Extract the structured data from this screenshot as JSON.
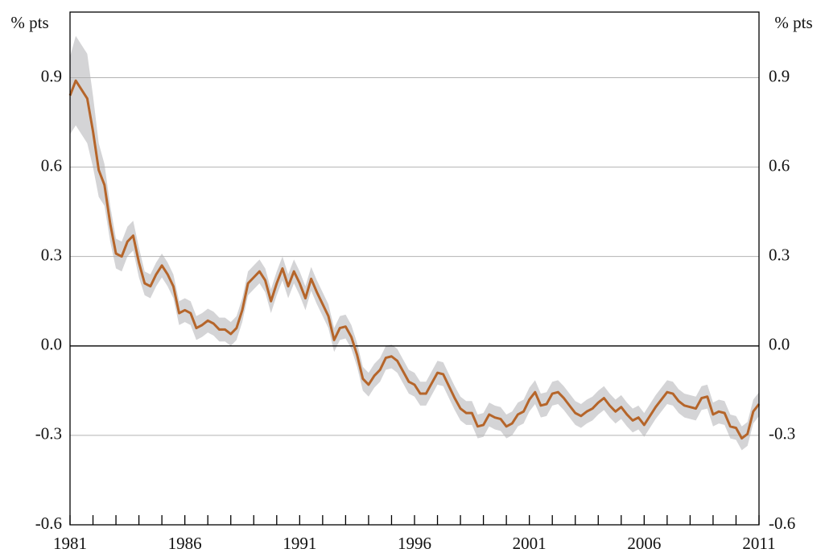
{
  "chart_data": {
    "type": "line",
    "y_label": "% pts",
    "xlim": [
      1981,
      2011
    ],
    "xticks": [
      1981,
      1986,
      1991,
      1996,
      2001,
      2006,
      2011
    ],
    "xminor_ticks": [
      1981,
      1982,
      1983,
      1984,
      1985,
      1986,
      1987,
      1988,
      1989,
      1990,
      1991,
      1992,
      1993,
      1994,
      1995,
      1996,
      1997,
      1998,
      1999,
      2000,
      2001,
      2002,
      2003,
      2004,
      2005,
      2006,
      2007,
      2008,
      2009,
      2010,
      2011
    ],
    "ylim": [
      -0.6,
      1.12
    ],
    "yticks": [
      {
        "value": -0.6,
        "label": "-0.6"
      },
      {
        "value": -0.3,
        "label": "-0.3"
      },
      {
        "value": 0,
        "label": "0.0"
      },
      {
        "value": 0.3,
        "label": "0.3"
      },
      {
        "value": 0.6,
        "label": "0.6"
      },
      {
        "value": 0.9,
        "label": "0.9"
      }
    ],
    "grid": true,
    "x": [
      1981,
      1981.25,
      1981.5,
      1981.75,
      1982,
      1982.25,
      1982.5,
      1982.75,
      1983,
      1983.25,
      1983.5,
      1983.75,
      1984,
      1984.25,
      1984.5,
      1984.75,
      1985,
      1985.25,
      1985.5,
      1985.75,
      1986,
      1986.25,
      1986.5,
      1986.75,
      1987,
      1987.25,
      1987.5,
      1987.75,
      1988,
      1988.25,
      1988.5,
      1988.75,
      1989,
      1989.25,
      1989.5,
      1989.75,
      1990,
      1990.25,
      1990.5,
      1990.75,
      1991,
      1991.25,
      1991.5,
      1991.75,
      1992,
      1992.25,
      1992.5,
      1992.75,
      1993,
      1993.25,
      1993.5,
      1993.75,
      1994,
      1994.25,
      1994.5,
      1994.75,
      1995,
      1995.25,
      1995.5,
      1995.75,
      1996,
      1996.25,
      1996.5,
      1996.75,
      1997,
      1997.25,
      1997.5,
      1997.75,
      1998,
      1998.25,
      1998.5,
      1998.75,
      1999,
      1999.25,
      1999.5,
      1999.75,
      2000,
      2000.25,
      2000.5,
      2000.75,
      2001,
      2001.25,
      2001.5,
      2001.75,
      2002,
      2002.25,
      2002.5,
      2002.75,
      2003,
      2003.25,
      2003.5,
      2003.75,
      2004,
      2004.25,
      2004.5,
      2004.75,
      2005,
      2005.25,
      2005.5,
      2005.75,
      2006,
      2006.25,
      2006.5,
      2006.75,
      2007,
      2007.25,
      2007.5,
      2007.75,
      2008,
      2008.25,
      2008.5,
      2008.75,
      2009,
      2009.25,
      2009.5,
      2009.75,
      2010,
      2010.25,
      2010.5,
      2010.75,
      2011
    ],
    "band": {
      "color": "#d4d4d6",
      "upper": [
        0.97,
        1.04,
        1.01,
        0.98,
        0.84,
        0.68,
        0.61,
        0.47,
        0.36,
        0.35,
        0.4,
        0.42,
        0.33,
        0.25,
        0.24,
        0.28,
        0.31,
        0.28,
        0.24,
        0.15,
        0.16,
        0.15,
        0.1,
        0.11,
        0.125,
        0.115,
        0.095,
        0.095,
        0.08,
        0.1,
        0.16,
        0.25,
        0.27,
        0.29,
        0.26,
        0.19,
        0.25,
        0.3,
        0.24,
        0.29,
        0.25,
        0.2,
        0.265,
        0.22,
        0.18,
        0.14,
        0.06,
        0.1,
        0.105,
        0.07,
        0.01,
        -0.07,
        -0.09,
        -0.06,
        -0.04,
        0.0,
        0.005,
        -0.01,
        -0.045,
        -0.08,
        -0.09,
        -0.12,
        -0.12,
        -0.085,
        -0.05,
        -0.055,
        -0.095,
        -0.135,
        -0.17,
        -0.185,
        -0.185,
        -0.23,
        -0.225,
        -0.19,
        -0.2,
        -0.205,
        -0.23,
        -0.22,
        -0.19,
        -0.18,
        -0.14,
        -0.115,
        -0.16,
        -0.155,
        -0.12,
        -0.115,
        -0.135,
        -0.16,
        -0.185,
        -0.195,
        -0.18,
        -0.17,
        -0.15,
        -0.135,
        -0.16,
        -0.18,
        -0.165,
        -0.19,
        -0.21,
        -0.2,
        -0.225,
        -0.195,
        -0.165,
        -0.14,
        -0.115,
        -0.12,
        -0.145,
        -0.16,
        -0.165,
        -0.17,
        -0.135,
        -0.13,
        -0.19,
        -0.18,
        -0.185,
        -0.23,
        -0.235,
        -0.27,
        -0.255,
        -0.18,
        -0.155
      ],
      "lower": [
        0.71,
        0.74,
        0.71,
        0.68,
        0.6,
        0.5,
        0.47,
        0.35,
        0.26,
        0.25,
        0.3,
        0.32,
        0.23,
        0.17,
        0.16,
        0.2,
        0.23,
        0.2,
        0.16,
        0.07,
        0.08,
        0.07,
        0.02,
        0.03,
        0.045,
        0.035,
        0.015,
        0.015,
        0.0,
        0.02,
        0.08,
        0.17,
        0.19,
        0.21,
        0.18,
        0.11,
        0.17,
        0.22,
        0.16,
        0.21,
        0.17,
        0.12,
        0.185,
        0.14,
        0.1,
        0.06,
        -0.02,
        0.02,
        0.025,
        -0.01,
        -0.07,
        -0.15,
        -0.17,
        -0.14,
        -0.12,
        -0.08,
        -0.075,
        -0.09,
        -0.125,
        -0.16,
        -0.17,
        -0.2,
        -0.2,
        -0.165,
        -0.13,
        -0.135,
        -0.175,
        -0.215,
        -0.25,
        -0.265,
        -0.265,
        -0.31,
        -0.305,
        -0.27,
        -0.28,
        -0.285,
        -0.31,
        -0.3,
        -0.27,
        -0.26,
        -0.22,
        -0.195,
        -0.24,
        -0.235,
        -0.2,
        -0.195,
        -0.215,
        -0.24,
        -0.265,
        -0.275,
        -0.26,
        -0.25,
        -0.23,
        -0.215,
        -0.24,
        -0.26,
        -0.245,
        -0.27,
        -0.29,
        -0.28,
        -0.305,
        -0.275,
        -0.245,
        -0.22,
        -0.195,
        -0.2,
        -0.225,
        -0.24,
        -0.245,
        -0.25,
        -0.215,
        -0.21,
        -0.27,
        -0.26,
        -0.265,
        -0.31,
        -0.315,
        -0.35,
        -0.335,
        -0.26,
        -0.235
      ]
    },
    "series": [
      {
        "color": "#b5652a",
        "values": [
          0.84,
          0.89,
          0.86,
          0.83,
          0.72,
          0.59,
          0.54,
          0.41,
          0.31,
          0.3,
          0.35,
          0.37,
          0.28,
          0.21,
          0.2,
          0.24,
          0.27,
          0.24,
          0.2,
          0.11,
          0.12,
          0.11,
          0.06,
          0.07,
          0.085,
          0.075,
          0.055,
          0.055,
          0.04,
          0.06,
          0.12,
          0.21,
          0.23,
          0.25,
          0.22,
          0.15,
          0.21,
          0.26,
          0.2,
          0.25,
          0.21,
          0.16,
          0.225,
          0.18,
          0.14,
          0.1,
          0.02,
          0.06,
          0.065,
          0.03,
          -0.03,
          -0.11,
          -0.13,
          -0.1,
          -0.08,
          -0.04,
          -0.035,
          -0.05,
          -0.085,
          -0.12,
          -0.13,
          -0.16,
          -0.16,
          -0.125,
          -0.09,
          -0.095,
          -0.135,
          -0.175,
          -0.21,
          -0.225,
          -0.225,
          -0.27,
          -0.265,
          -0.23,
          -0.24,
          -0.245,
          -0.27,
          -0.26,
          -0.23,
          -0.22,
          -0.18,
          -0.155,
          -0.2,
          -0.195,
          -0.16,
          -0.155,
          -0.175,
          -0.2,
          -0.225,
          -0.235,
          -0.22,
          -0.21,
          -0.19,
          -0.175,
          -0.2,
          -0.22,
          -0.205,
          -0.23,
          -0.25,
          -0.24,
          -0.265,
          -0.235,
          -0.205,
          -0.18,
          -0.155,
          -0.16,
          -0.185,
          -0.2,
          -0.205,
          -0.21,
          -0.175,
          -0.17,
          -0.23,
          -0.22,
          -0.225,
          -0.27,
          -0.275,
          -0.31,
          -0.295,
          -0.22,
          -0.195
        ]
      }
    ]
  }
}
